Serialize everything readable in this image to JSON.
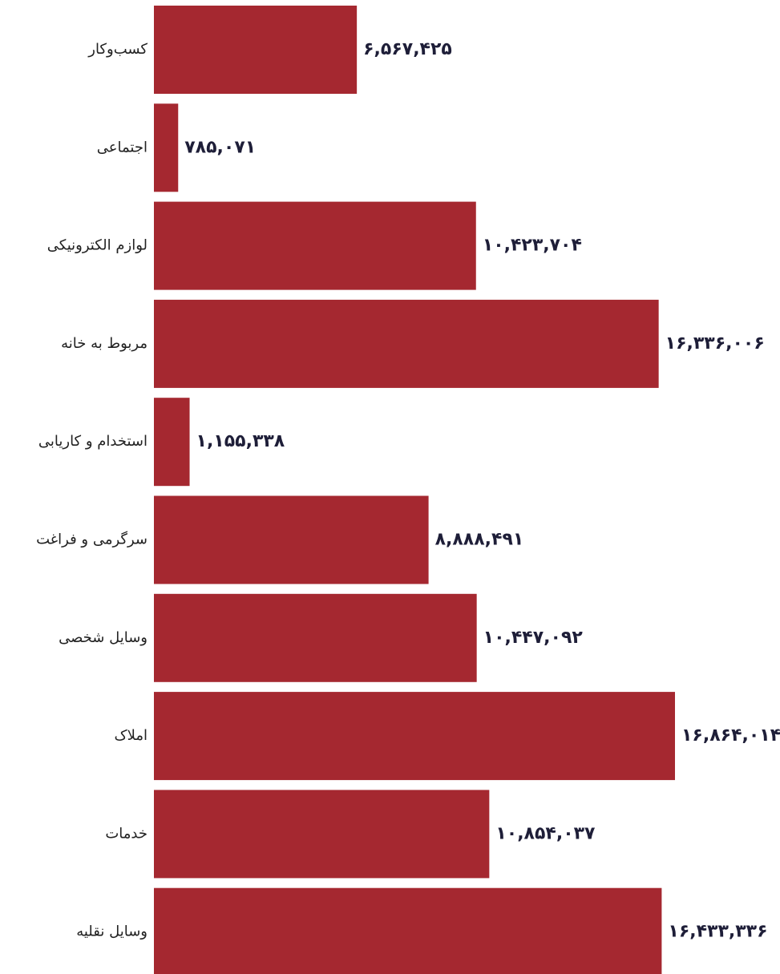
{
  "chart_data": {
    "type": "bar",
    "orientation": "horizontal",
    "categories": [
      "کسب‌وکار",
      "اجتماعی",
      "لوازم الکترونیکی",
      "مربوط به خانه",
      "استخدام و کاریابی",
      "سرگرمی و فراغت",
      "وسایل شخصی",
      "املاک",
      "خدمات",
      "وسایل نقلیه"
    ],
    "values": [
      6567425,
      785071,
      10423704,
      16336006,
      1155338,
      8888491,
      10447092,
      16864014,
      10854037,
      16433336
    ],
    "value_labels": [
      "۶,۵۶۷,۴۲۵",
      "۷۸۵,۰۷۱",
      "۱۰,۴۲۳,۷۰۴",
      "۱۶,۳۳۶,۰۰۶",
      "۱,۱۵۵,۳۳۸",
      "۸,۸۸۸,۴۹۱",
      "۱۰,۴۴۷,۰۹۲",
      "۱۶,۸۶۴,۰۱۴",
      "۱۰,۸۵۴,۰۳۷",
      "۱۶,۴۳۳,۳۳۶"
    ],
    "xlim": [
      0,
      16864014
    ],
    "grid": false,
    "legend": "none",
    "colors": {
      "bar": "#a52830",
      "value_text": "#1e1e38",
      "category_text": "#222222"
    }
  }
}
